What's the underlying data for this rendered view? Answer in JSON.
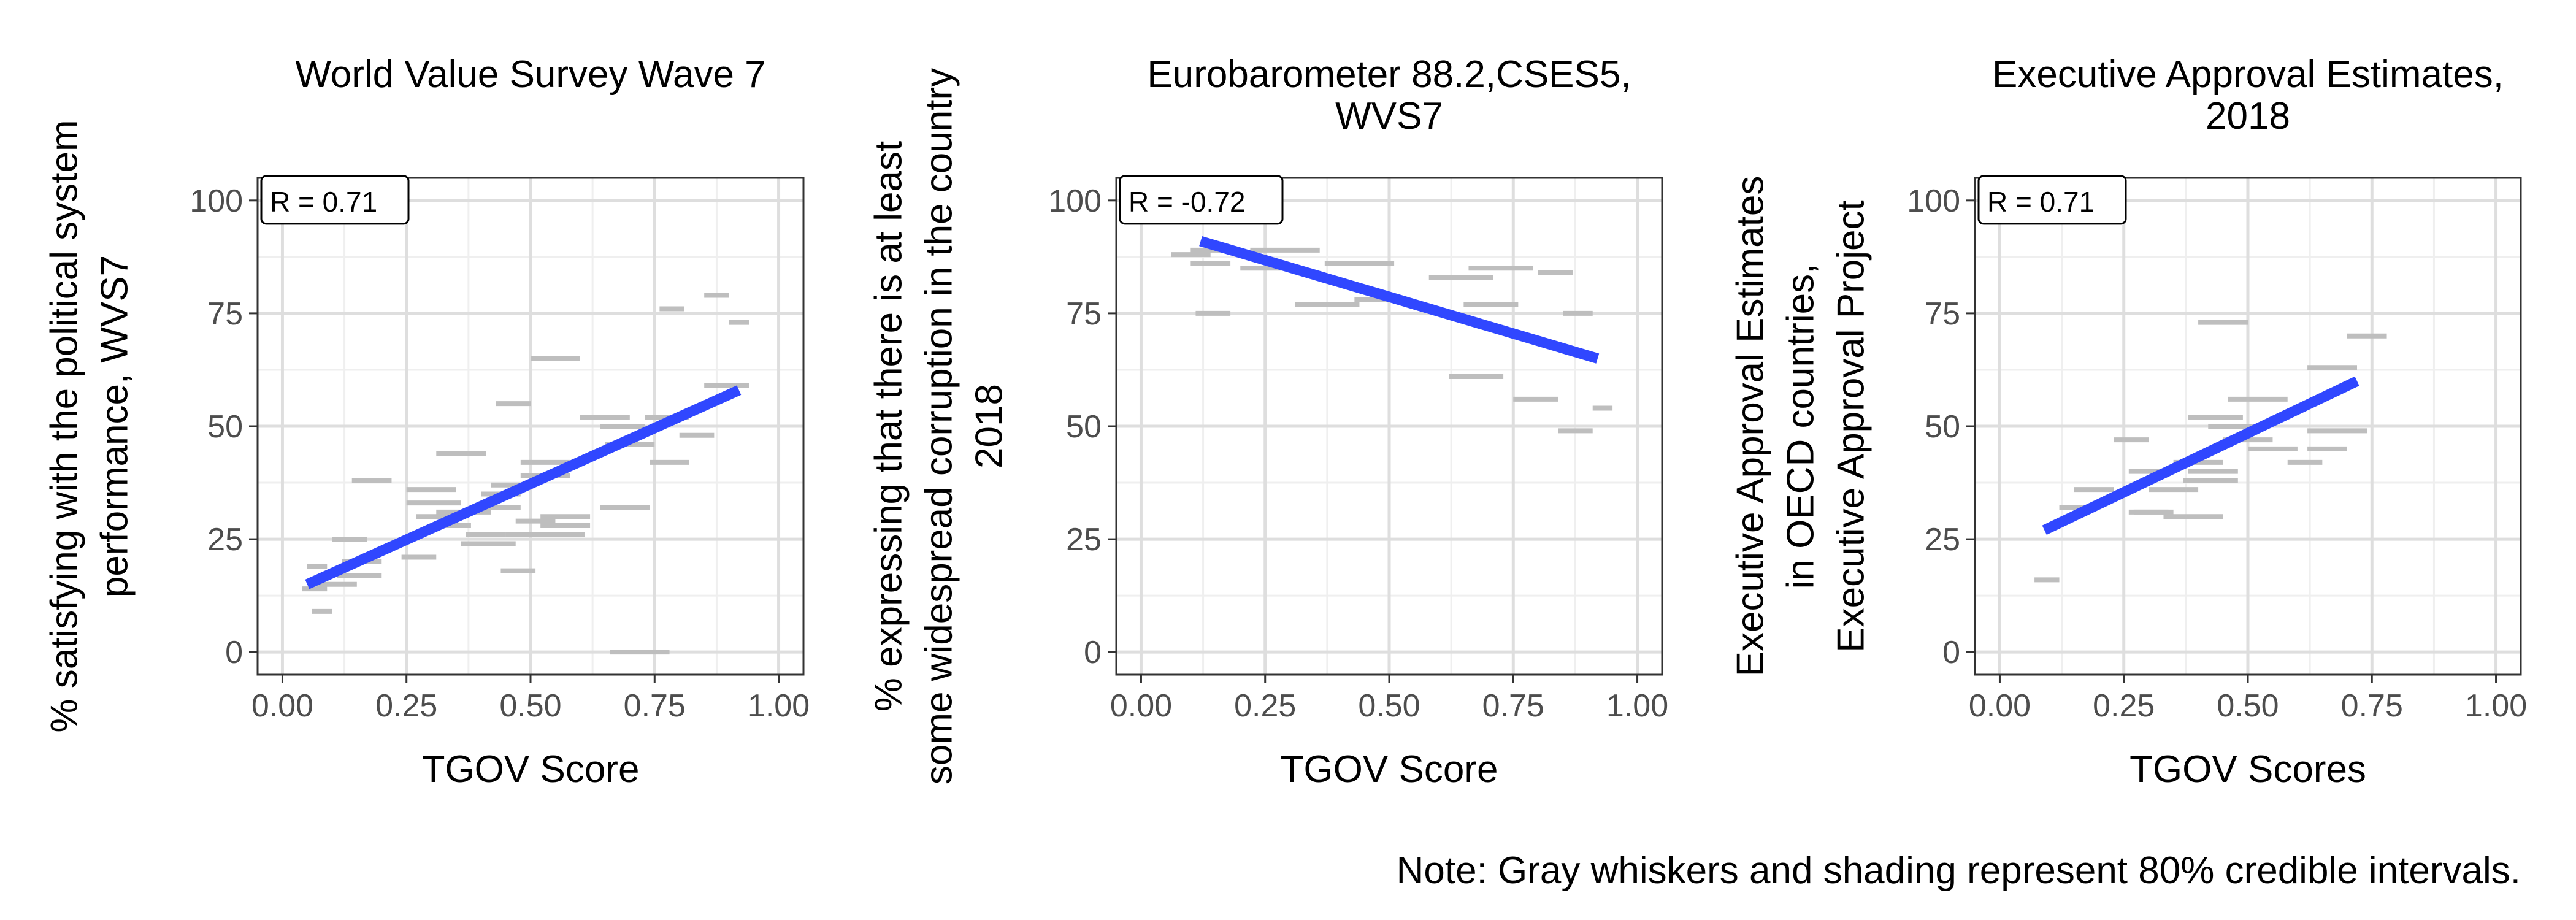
{
  "chart_data": [
    {
      "type": "scatter",
      "title": "World Value Survey Wave 7",
      "xlabel": "TGOV Score",
      "ylabel": [
        "% satisfying with the political system",
        "performance, WVS7"
      ],
      "xlim": [
        -0.05,
        1.05
      ],
      "ylim": [
        -5,
        105
      ],
      "x_ticks": [
        0,
        0.25,
        0.5,
        0.75,
        1
      ],
      "x_tick_labels": [
        "0.00",
        "0.25",
        "0.50",
        "0.75",
        "1.00"
      ],
      "y_ticks": [
        0,
        25,
        50,
        75,
        100
      ],
      "y_tick_labels": [
        "0",
        "25",
        "50",
        "75",
        "100"
      ],
      "annotation": "R = 0.71",
      "fit_line": {
        "x": [
          0.05,
          0.92
        ],
        "y": [
          15,
          58
        ]
      },
      "intervals": [
        {
          "xmin": 0.04,
          "xmax": 0.09,
          "y": 14
        },
        {
          "xmin": 0.05,
          "xmax": 0.09,
          "y": 19
        },
        {
          "xmin": 0.06,
          "xmax": 0.1,
          "y": 9
        },
        {
          "xmin": 0.07,
          "xmax": 0.15,
          "y": 15
        },
        {
          "xmin": 0.1,
          "xmax": 0.17,
          "y": 25
        },
        {
          "xmin": 0.11,
          "xmax": 0.2,
          "y": 17
        },
        {
          "xmin": 0.12,
          "xmax": 0.2,
          "y": 20
        },
        {
          "xmin": 0.14,
          "xmax": 0.22,
          "y": 38
        },
        {
          "xmin": 0.25,
          "xmax": 0.35,
          "y": 36
        },
        {
          "xmin": 0.25,
          "xmax": 0.36,
          "y": 33
        },
        {
          "xmin": 0.27,
          "xmax": 0.36,
          "y": 30
        },
        {
          "xmin": 0.24,
          "xmax": 0.31,
          "y": 21
        },
        {
          "xmin": 0.3,
          "xmax": 0.38,
          "y": 28
        },
        {
          "xmin": 0.31,
          "xmax": 0.42,
          "y": 31
        },
        {
          "xmin": 0.31,
          "xmax": 0.41,
          "y": 44
        },
        {
          "xmin": 0.37,
          "xmax": 0.45,
          "y": 26
        },
        {
          "xmin": 0.36,
          "xmax": 0.47,
          "y": 24
        },
        {
          "xmin": 0.4,
          "xmax": 0.48,
          "y": 32
        },
        {
          "xmin": 0.4,
          "xmax": 0.48,
          "y": 35
        },
        {
          "xmin": 0.42,
          "xmax": 0.5,
          "y": 37
        },
        {
          "xmin": 0.43,
          "xmax": 0.5,
          "y": 55
        },
        {
          "xmin": 0.44,
          "xmax": 0.51,
          "y": 18
        },
        {
          "xmin": 0.45,
          "xmax": 0.55,
          "y": 26
        },
        {
          "xmin": 0.47,
          "xmax": 0.55,
          "y": 29
        },
        {
          "xmin": 0.48,
          "xmax": 0.58,
          "y": 42
        },
        {
          "xmin": 0.48,
          "xmax": 0.58,
          "y": 39
        },
        {
          "xmin": 0.5,
          "xmax": 0.6,
          "y": 65
        },
        {
          "xmin": 0.52,
          "xmax": 0.62,
          "y": 28
        },
        {
          "xmin": 0.52,
          "xmax": 0.62,
          "y": 30
        },
        {
          "xmin": 0.53,
          "xmax": 0.61,
          "y": 26
        },
        {
          "xmin": 0.6,
          "xmax": 0.7,
          "y": 52
        },
        {
          "xmin": 0.64,
          "xmax": 0.73,
          "y": 50
        },
        {
          "xmin": 0.64,
          "xmax": 0.74,
          "y": 32
        },
        {
          "xmin": 0.65,
          "xmax": 0.75,
          "y": 46
        },
        {
          "xmin": 0.66,
          "xmax": 0.78,
          "y": 0
        },
        {
          "xmin": 0.73,
          "xmax": 0.82,
          "y": 52
        },
        {
          "xmin": 0.74,
          "xmax": 0.82,
          "y": 42
        },
        {
          "xmin": 0.76,
          "xmax": 0.81,
          "y": 76
        },
        {
          "xmin": 0.8,
          "xmax": 0.87,
          "y": 48
        },
        {
          "xmin": 0.85,
          "xmax": 0.9,
          "y": 79
        },
        {
          "xmin": 0.85,
          "xmax": 0.94,
          "y": 59
        },
        {
          "xmin": 0.9,
          "xmax": 0.94,
          "y": 73
        }
      ]
    },
    {
      "type": "scatter",
      "title": [
        "Eurobarometer 88.2,CSES5,",
        "WVS7"
      ],
      "xlabel": "TGOV Score",
      "ylabel": [
        "% expressing that there is at least",
        "some widespread corruption in the country",
        "2018"
      ],
      "xlim": [
        -0.05,
        1.05
      ],
      "ylim": [
        -5,
        105
      ],
      "x_ticks": [
        0,
        0.25,
        0.5,
        0.75,
        1
      ],
      "x_tick_labels": [
        "0.00",
        "0.25",
        "0.50",
        "0.75",
        "1.00"
      ],
      "y_ticks": [
        0,
        25,
        50,
        75,
        100
      ],
      "y_tick_labels": [
        "0",
        "25",
        "50",
        "75",
        "100"
      ],
      "annotation": "R = -0.72",
      "fit_line": {
        "x": [
          0.12,
          0.92
        ],
        "y": [
          91,
          65
        ]
      },
      "intervals": [
        {
          "xmin": 0.06,
          "xmax": 0.14,
          "y": 88
        },
        {
          "xmin": 0.1,
          "xmax": 0.18,
          "y": 89
        },
        {
          "xmin": 0.1,
          "xmax": 0.18,
          "y": 86
        },
        {
          "xmin": 0.11,
          "xmax": 0.18,
          "y": 75
        },
        {
          "xmin": 0.2,
          "xmax": 0.3,
          "y": 85
        },
        {
          "xmin": 0.22,
          "xmax": 0.36,
          "y": 89
        },
        {
          "xmin": 0.31,
          "xmax": 0.44,
          "y": 77
        },
        {
          "xmin": 0.37,
          "xmax": 0.51,
          "y": 86
        },
        {
          "xmin": 0.43,
          "xmax": 0.5,
          "y": 78
        },
        {
          "xmin": 0.58,
          "xmax": 0.71,
          "y": 83
        },
        {
          "xmin": 0.66,
          "xmax": 0.79,
          "y": 85
        },
        {
          "xmin": 0.65,
          "xmax": 0.76,
          "y": 77
        },
        {
          "xmin": 0.62,
          "xmax": 0.73,
          "y": 61
        },
        {
          "xmin": 0.75,
          "xmax": 0.84,
          "y": 56
        },
        {
          "xmin": 0.8,
          "xmax": 0.87,
          "y": 84
        },
        {
          "xmin": 0.85,
          "xmax": 0.91,
          "y": 75
        },
        {
          "xmin": 0.84,
          "xmax": 0.91,
          "y": 49
        },
        {
          "xmin": 0.91,
          "xmax": 0.95,
          "y": 54
        }
      ]
    },
    {
      "type": "scatter",
      "title": [
        "Executive Approval Estimates,",
        "2018"
      ],
      "xlabel": "TGOV Scores",
      "ylabel": [
        "Executive Approval Estimates",
        "in OECD countries,",
        "Executive Approval Project"
      ],
      "xlim": [
        -0.05,
        1.05
      ],
      "ylim": [
        -5,
        105
      ],
      "x_ticks": [
        0,
        0.25,
        0.5,
        0.75,
        1
      ],
      "x_tick_labels": [
        "0.00",
        "0.25",
        "0.50",
        "0.75",
        "1.00"
      ],
      "y_ticks": [
        0,
        25,
        50,
        75,
        100
      ],
      "y_tick_labels": [
        "0",
        "25",
        "50",
        "75",
        "100"
      ],
      "annotation": "R = 0.71",
      "fit_line": {
        "x": [
          0.09,
          0.72
        ],
        "y": [
          27,
          60
        ]
      },
      "intervals": [
        {
          "xmin": 0.07,
          "xmax": 0.12,
          "y": 16
        },
        {
          "xmin": 0.12,
          "xmax": 0.19,
          "y": 32
        },
        {
          "xmin": 0.15,
          "xmax": 0.23,
          "y": 36
        },
        {
          "xmin": 0.23,
          "xmax": 0.3,
          "y": 47
        },
        {
          "xmin": 0.26,
          "xmax": 0.35,
          "y": 40
        },
        {
          "xmin": 0.27,
          "xmax": 0.35,
          "y": 31
        },
        {
          "xmin": 0.26,
          "xmax": 0.34,
          "y": 31
        },
        {
          "xmin": 0.3,
          "xmax": 0.4,
          "y": 36
        },
        {
          "xmin": 0.33,
          "xmax": 0.45,
          "y": 30
        },
        {
          "xmin": 0.35,
          "xmax": 0.45,
          "y": 42
        },
        {
          "xmin": 0.37,
          "xmax": 0.48,
          "y": 38
        },
        {
          "xmin": 0.38,
          "xmax": 0.48,
          "y": 40
        },
        {
          "xmin": 0.38,
          "xmax": 0.49,
          "y": 52
        },
        {
          "xmin": 0.4,
          "xmax": 0.5,
          "y": 73
        },
        {
          "xmin": 0.42,
          "xmax": 0.52,
          "y": 50
        },
        {
          "xmin": 0.45,
          "xmax": 0.55,
          "y": 47
        },
        {
          "xmin": 0.46,
          "xmax": 0.58,
          "y": 56
        },
        {
          "xmin": 0.5,
          "xmax": 0.6,
          "y": 45
        },
        {
          "xmin": 0.58,
          "xmax": 0.65,
          "y": 42
        },
        {
          "xmin": 0.62,
          "xmax": 0.7,
          "y": 45
        },
        {
          "xmin": 0.62,
          "xmax": 0.72,
          "y": 63
        },
        {
          "xmin": 0.62,
          "xmax": 0.74,
          "y": 49
        },
        {
          "xmin": 0.7,
          "xmax": 0.78,
          "y": 70
        }
      ]
    }
  ],
  "note": "Note: Gray whiskers and shading represent 80% credible intervals.",
  "colors": {
    "fit_line": "#3047ff",
    "interval": "#bebebe",
    "grid_major": "#dedede",
    "grid_minor": "#efefef",
    "panel_border": "#333333",
    "tick_text": "#4d4d4d"
  }
}
